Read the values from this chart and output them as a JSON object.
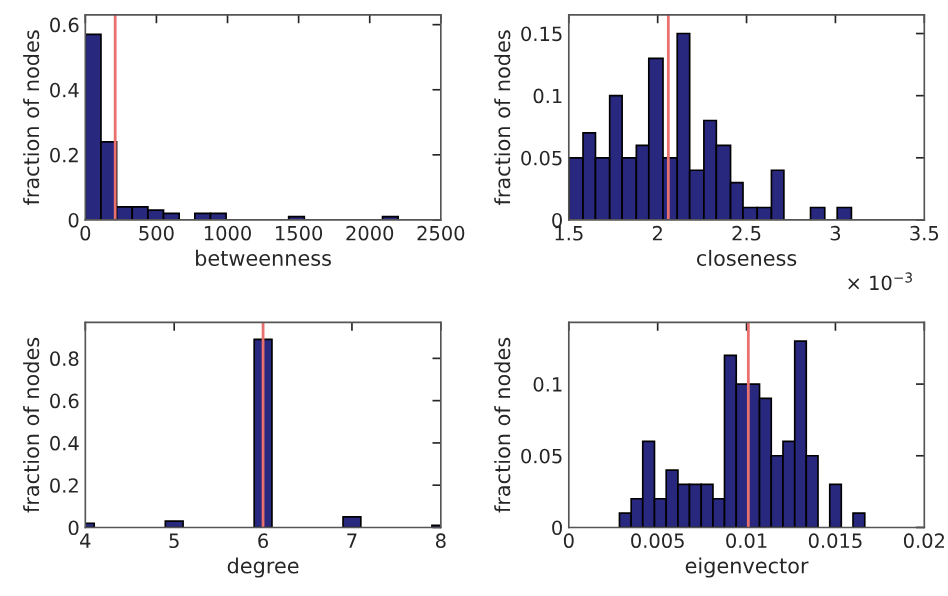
{
  "chart_data": [
    {
      "type": "histogram",
      "xlabel": "betweenness",
      "ylabel": "fraction of nodes",
      "color": "#28287f",
      "bins": [
        0,
        110,
        220,
        330,
        440,
        550,
        660,
        770,
        880,
        990,
        1430,
        1540,
        2090,
        2200
      ],
      "values": [
        0.57,
        0.24,
        0.04,
        0.04,
        0.03,
        0.02,
        0,
        0.02,
        0.02,
        0,
        0.01,
        0,
        0.01
      ],
      "xlim": [
        0,
        2500
      ],
      "xticks": [
        0,
        500,
        1000,
        1500,
        2000,
        2500
      ],
      "ylim": [
        0,
        0.63
      ],
      "yticks": [
        0,
        0.2,
        0.4,
        0.6
      ],
      "ref_lines": [
        {
          "axis": "x",
          "value": 210,
          "color": "#e8706f"
        }
      ],
      "grid": false
    },
    {
      "type": "histogram",
      "xlabel": "closeness",
      "ylabel": "fraction of nodes",
      "color": "#28287f",
      "annotations": [
        "× 10$^{−3}$"
      ],
      "bins": [
        1.5,
        1.58,
        1.65,
        1.73,
        1.8,
        1.88,
        1.95,
        2.03,
        2.11,
        2.18,
        2.26,
        2.33,
        2.41,
        2.48,
        2.56,
        2.64,
        2.71,
        2.86,
        2.94,
        3.01,
        3.09
      ],
      "values": [
        0.05,
        0.07,
        0.05,
        0.1,
        0.05,
        0.06,
        0.13,
        0.05,
        0.15,
        0.04,
        0.08,
        0.06,
        0.03,
        0.01,
        0.01,
        0.04,
        0,
        0.01,
        0,
        0.01
      ],
      "xlim": [
        1.5,
        3.5
      ],
      "xticks": [
        1.5,
        2,
        2.5,
        3,
        3.5
      ],
      "ylim": [
        0,
        0.165
      ],
      "yticks": [
        0,
        0.05,
        0.1,
        0.15
      ],
      "ref_lines": [
        {
          "axis": "x",
          "value": 2.06,
          "color": "#e8706f"
        }
      ],
      "grid": false
    },
    {
      "type": "histogram",
      "xlabel": "degree",
      "ylabel": "fraction of nodes",
      "color": "#28287f",
      "bins": [
        3.9,
        4.1,
        4.9,
        5.1,
        5.9,
        6.1,
        6.9,
        7.1,
        7.9,
        8.1
      ],
      "values": [
        0.02,
        0,
        0.03,
        0,
        0.89,
        0,
        0.05,
        0,
        0.01
      ],
      "xlim": [
        4,
        8
      ],
      "xticks": [
        4,
        5,
        6,
        7,
        8
      ],
      "ylim": [
        0,
        0.97
      ],
      "yticks": [
        0,
        0.2,
        0.4,
        0.6,
        0.8
      ],
      "ref_lines": [
        {
          "axis": "x",
          "value": 6,
          "color": "#e8706f"
        }
      ],
      "grid": false
    },
    {
      "type": "histogram",
      "xlabel": "eigenvector",
      "ylabel": "fraction of nodes",
      "color": "#28287f",
      "bins": [
        0.00285,
        0.00351,
        0.00416,
        0.00482,
        0.00548,
        0.00614,
        0.00679,
        0.00745,
        0.00811,
        0.00876,
        0.00942,
        0.01008,
        0.01073,
        0.01139,
        0.01205,
        0.01271,
        0.01336,
        0.01402,
        0.01468,
        0.01533,
        0.01599,
        0.01665
      ],
      "values": [
        0.01,
        0.02,
        0.06,
        0.02,
        0.04,
        0.03,
        0.03,
        0.03,
        0.02,
        0.12,
        0.1,
        0.1,
        0.09,
        0.05,
        0.06,
        0.13,
        0.05,
        0,
        0.03,
        0,
        0.01
      ],
      "xlim": [
        0,
        0.02
      ],
      "xticks": [
        0,
        0.005,
        0.01,
        0.015,
        0.02
      ],
      "ylim": [
        0,
        0.143
      ],
      "yticks": [
        0,
        0.05,
        0.1
      ],
      "ref_lines": [
        {
          "axis": "x",
          "value": 0.0101,
          "color": "#e8706f"
        }
      ],
      "grid": false
    }
  ]
}
